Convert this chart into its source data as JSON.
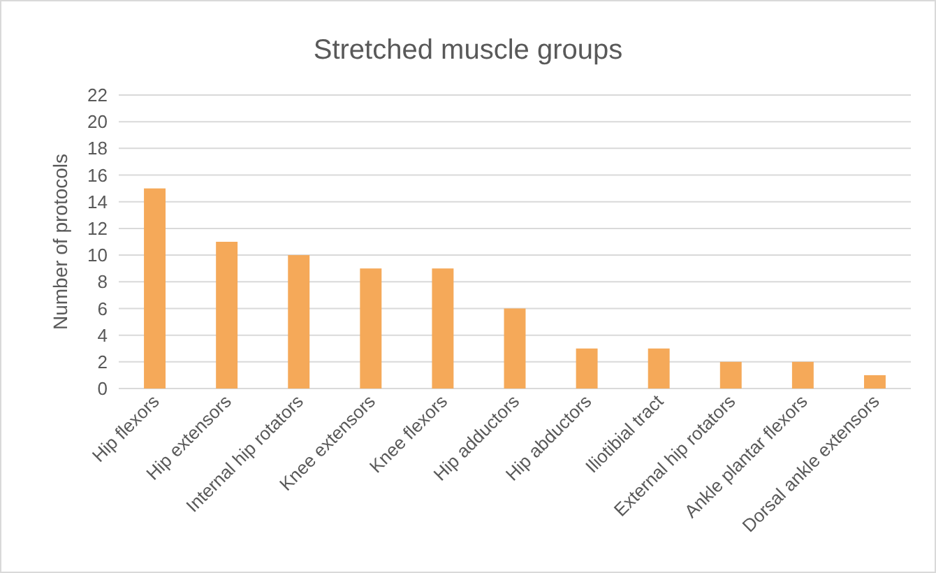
{
  "chart_data": {
    "type": "bar",
    "title": "Stretched muscle groups",
    "ylabel": "Number of protocols",
    "categories": [
      "Hip flexors",
      "Hip extensors",
      "Internal hip rotators",
      "Knee extensors",
      "Knee flexors",
      "Hip adductors",
      "Hip abductors",
      "Iliotibial tract",
      "External hip rotators",
      "Ankle plantar flexors",
      "Dorsal ankle extensors"
    ],
    "values": [
      15,
      11,
      10,
      9,
      9,
      6,
      3,
      3,
      2,
      2,
      1
    ],
    "color": "#f5a959",
    "ylim": [
      0,
      22
    ],
    "yticks": [
      0,
      2,
      4,
      6,
      8,
      10,
      12,
      14,
      16,
      18,
      20,
      22
    ],
    "grid": "y"
  }
}
